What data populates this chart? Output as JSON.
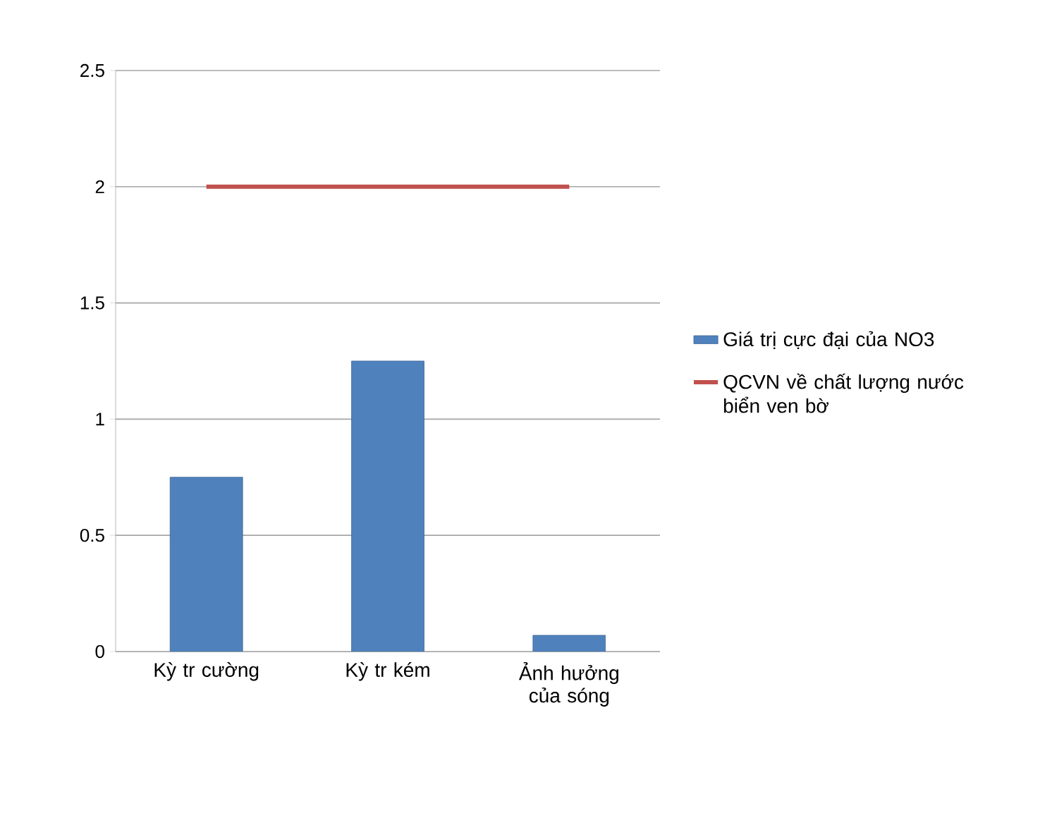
{
  "chart_data": {
    "type": "bar",
    "categories": [
      "Kỳ tr cường",
      "Kỳ tr kém",
      "Ảnh hưởng của sóng"
    ],
    "series": [
      {
        "name": "Giá trị cực đại của NO3",
        "color": "#4f81bd",
        "values": [
          0.75,
          1.25,
          0.07
        ]
      },
      {
        "name": "QCVN về chất lượng nước biển ven bờ",
        "type": "line",
        "color": "#c0504d",
        "values": [
          2,
          2,
          2
        ]
      }
    ],
    "ylim": [
      0,
      2.5
    ],
    "yticks": [
      0,
      0.5,
      1,
      1.5,
      2,
      2.5
    ],
    "grid": "y",
    "legend": "right"
  }
}
